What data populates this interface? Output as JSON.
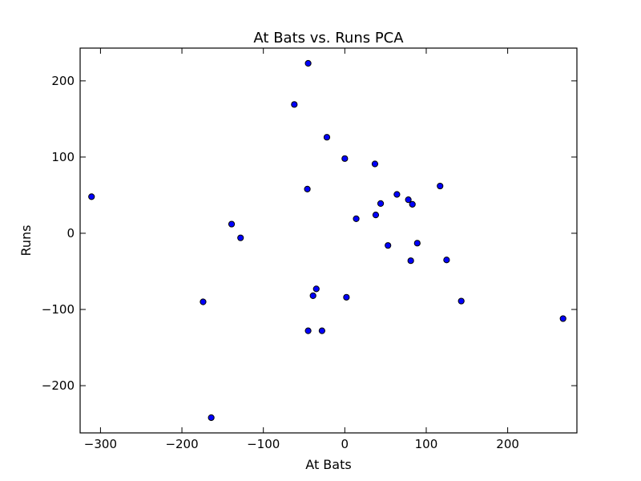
{
  "chart_data": {
    "type": "scatter",
    "title": "At Bats vs. Runs PCA",
    "xlabel": "At Bats",
    "ylabel": "Runs",
    "xlim": [
      -325,
      285
    ],
    "ylim": [
      -262,
      243
    ],
    "x_ticks": [
      -300,
      -200,
      -100,
      0,
      100,
      200
    ],
    "y_ticks": [
      -200,
      -100,
      0,
      100,
      200
    ],
    "x_tick_labels": [
      "−300",
      "−200",
      "−100",
      "0",
      "100",
      "200"
    ],
    "y_tick_labels": [
      "−200",
      "−100",
      "0",
      "100",
      "200"
    ],
    "grid": false,
    "marker_color": "#0000ff",
    "marker_edge_color": "#000000",
    "points": [
      {
        "x": -311,
        "y": 48
      },
      {
        "x": -45,
        "y": 223
      },
      {
        "x": -62,
        "y": 169
      },
      {
        "x": -22,
        "y": 126
      },
      {
        "x": 0,
        "y": 98
      },
      {
        "x": 37,
        "y": 91
      },
      {
        "x": 117,
        "y": 62
      },
      {
        "x": -46,
        "y": 58
      },
      {
        "x": 64,
        "y": 51
      },
      {
        "x": 78,
        "y": 44
      },
      {
        "x": 83,
        "y": 38
      },
      {
        "x": 44,
        "y": 39
      },
      {
        "x": 38,
        "y": 24
      },
      {
        "x": 14,
        "y": 19
      },
      {
        "x": -139,
        "y": 12
      },
      {
        "x": -128,
        "y": -6
      },
      {
        "x": 53,
        "y": -16
      },
      {
        "x": 89,
        "y": -13
      },
      {
        "x": 81,
        "y": -36
      },
      {
        "x": 125,
        "y": -35
      },
      {
        "x": -35,
        "y": -73
      },
      {
        "x": -39,
        "y": -82
      },
      {
        "x": 2,
        "y": -84
      },
      {
        "x": -174,
        "y": -90
      },
      {
        "x": 143,
        "y": -89
      },
      {
        "x": 268,
        "y": -112
      },
      {
        "x": -45,
        "y": -128
      },
      {
        "x": -28,
        "y": -128
      },
      {
        "x": -164,
        "y": -242
      }
    ]
  }
}
